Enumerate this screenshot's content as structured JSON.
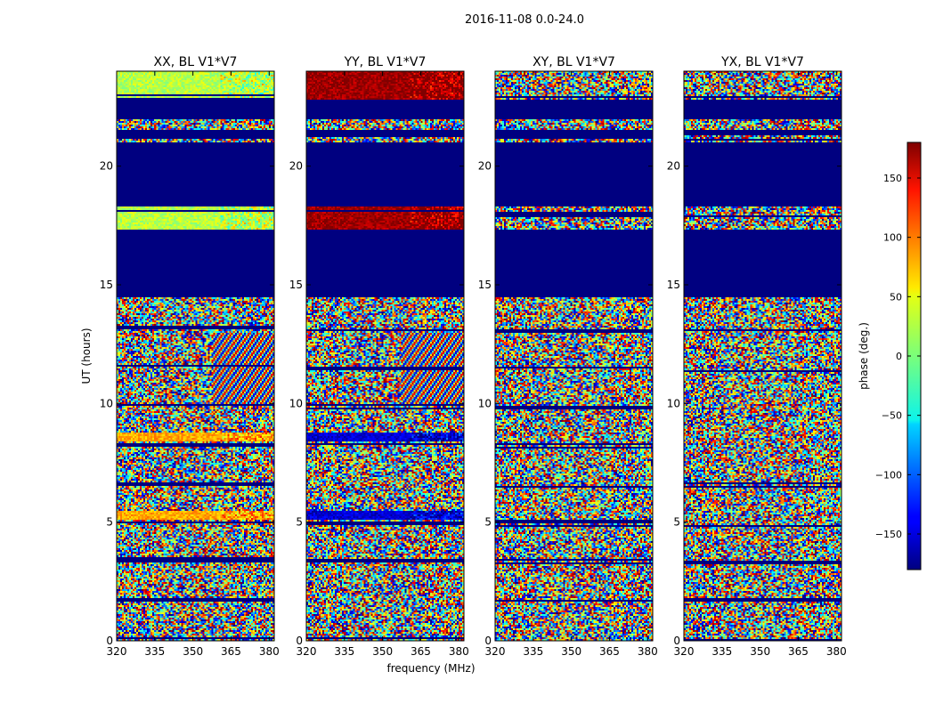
{
  "suptitle": "2016-11-08 0.0-24.0",
  "chart_data": {
    "type": "heatmap",
    "colormap": "jet",
    "ylabel": "UT (hours)",
    "xlabel": "frequency (MHz)",
    "xlim": [
      320,
      382
    ],
    "ylim": [
      0,
      24
    ],
    "xticks": [
      "320",
      "335",
      "350",
      "365",
      "380"
    ],
    "xtick_values": [
      320,
      335,
      350,
      365,
      380
    ],
    "yticks": [
      "0",
      "5",
      "10",
      "15",
      "20"
    ],
    "ytick_values": [
      0,
      5,
      10,
      15,
      20
    ],
    "panels": [
      {
        "title": "XX, BL V1*V7"
      },
      {
        "title": "YY, BL V1*V7"
      },
      {
        "title": "XY, BL V1*V7"
      },
      {
        "title": "YX, BL V1*V7"
      }
    ],
    "gap_bands_hours": [
      [
        14.5,
        17.3
      ],
      [
        18.3,
        21.0
      ],
      [
        21.3,
        21.5
      ],
      [
        22.0,
        22.8
      ]
    ],
    "notable_bands": [
      {
        "panel": 0,
        "range_hours": [
          17.3,
          18.3
        ],
        "phase_deg": 20
      },
      {
        "panel": 0,
        "range_hours": [
          5.1,
          5.5
        ],
        "phase_deg": 75
      },
      {
        "panel": 0,
        "range_hours": [
          8.4,
          8.8
        ],
        "phase_deg": 75
      },
      {
        "panel": 0,
        "range_hours": [
          22.8,
          24.0
        ],
        "phase_deg": 20
      },
      {
        "panel": 1,
        "range_hours": [
          17.3,
          18.3
        ],
        "phase_deg": 170
      },
      {
        "panel": 1,
        "range_hours": [
          5.1,
          5.5
        ],
        "phase_deg": -150
      },
      {
        "panel": 1,
        "range_hours": [
          8.4,
          8.8
        ],
        "phase_deg": -150
      },
      {
        "panel": 1,
        "range_hours": [
          22.8,
          24.0
        ],
        "phase_deg": 170
      }
    ],
    "colorbar": {
      "label": "phase (deg.)",
      "range": [
        -180,
        180
      ],
      "ticks": [
        "150",
        "100",
        "50",
        "0",
        "−50",
        "−100",
        "−150"
      ],
      "tick_values": [
        150,
        100,
        50,
        0,
        -50,
        -100,
        -150
      ]
    }
  }
}
